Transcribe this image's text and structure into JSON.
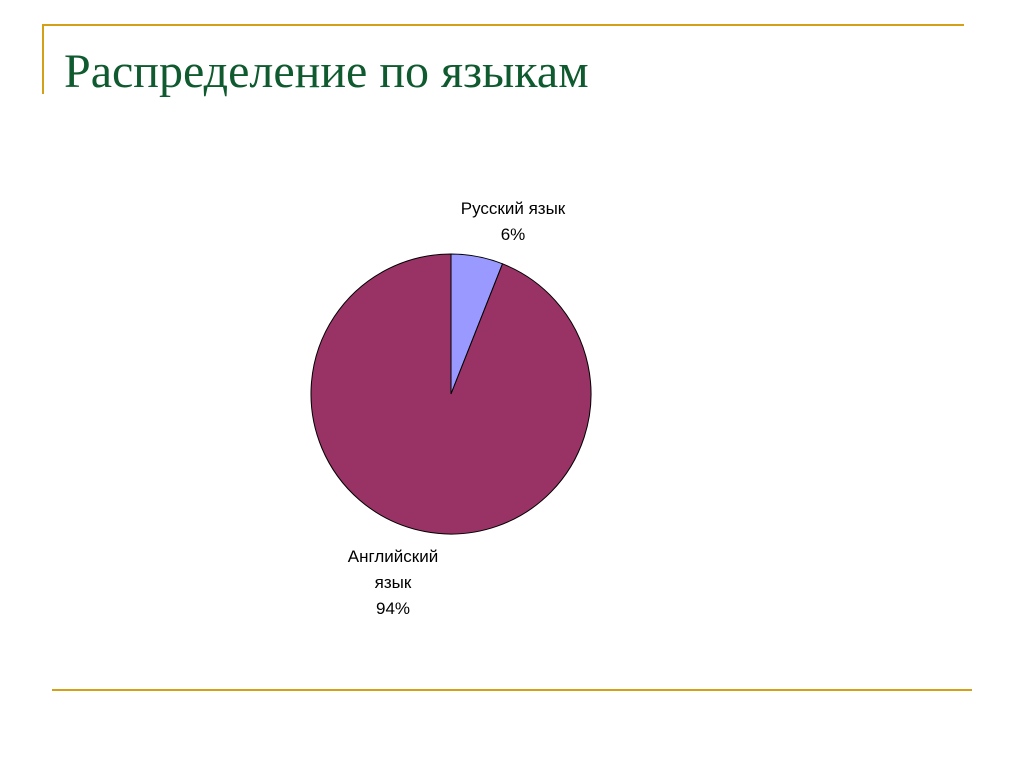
{
  "slide": {
    "title": "Распределение по языкам"
  },
  "chart_data": {
    "type": "pie",
    "title": "",
    "start_angle_deg": 0,
    "direction": "clockwise",
    "slices": [
      {
        "name": "Русский язык",
        "value": 6,
        "label_lines": [
          "Русский язык",
          "6%"
        ],
        "color": "#9999ff"
      },
      {
        "name": "Английский язык",
        "value": 94,
        "label_lines": [
          "Английский",
          "язык",
          "94%"
        ],
        "color": "#993366"
      }
    ],
    "legend": "none"
  }
}
